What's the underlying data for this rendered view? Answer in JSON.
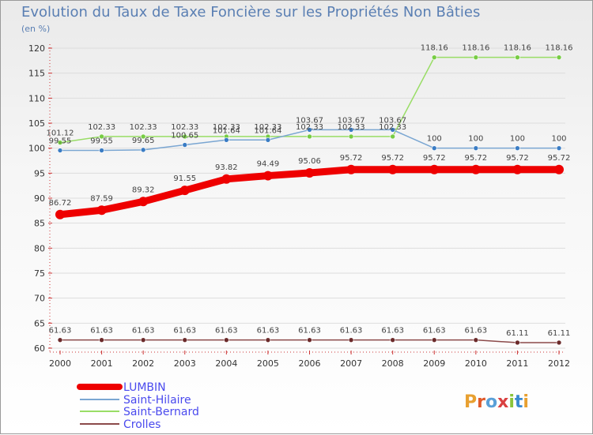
{
  "chart_data": {
    "type": "line",
    "title": "Evolution du Taux de Taxe Foncière sur les Propriétés Non Bâties",
    "ylabel": "(en %)",
    "xlabel": "",
    "categories": [
      "2000",
      "2001",
      "2002",
      "2003",
      "2004",
      "2005",
      "2006",
      "2007",
      "2008",
      "2009",
      "2010",
      "2011",
      "2012"
    ],
    "ylim": [
      60,
      120
    ],
    "yticks": [
      60,
      65,
      70,
      75,
      80,
      85,
      90,
      95,
      100,
      105,
      110,
      115,
      120
    ],
    "series": [
      {
        "name": "LUMBIN",
        "color": "#ee0000",
        "values": [
          86.72,
          87.59,
          89.32,
          91.55,
          93.82,
          94.49,
          95.06,
          95.72,
          95.72,
          95.72,
          95.72,
          95.72,
          95.72
        ],
        "labels": [
          "86.72",
          "87.59",
          "89.32",
          "91.55",
          "93.82",
          "94.49",
          "95.06",
          "95.72",
          "95.72",
          "95.72",
          "95.72",
          "95.72",
          "95.72"
        ]
      },
      {
        "name": "Saint-Hilaire",
        "color": "#7aa6d2",
        "marker": "#3a7cc4",
        "values": [
          99.55,
          99.55,
          99.65,
          100.65,
          101.64,
          101.64,
          103.67,
          103.67,
          103.67,
          100,
          100,
          100,
          100
        ],
        "labels": [
          "99.55",
          "99.55",
          "99.65",
          "100.65",
          "101.64",
          "101.64",
          "103.67",
          "103.67",
          "103.67",
          "100",
          "100",
          "100",
          "100"
        ]
      },
      {
        "name": "Saint-Bernard",
        "color": "#99dd66",
        "marker": "#77cc44",
        "values": [
          101.12,
          102.33,
          102.33,
          102.33,
          102.33,
          102.33,
          102.33,
          102.33,
          102.33,
          118.16,
          118.16,
          118.16,
          118.16
        ],
        "labels": [
          "101.12",
          "102.33",
          "102.33",
          "102.33",
          "102.33",
          "102.33",
          "102.33",
          "102.33",
          "102.33",
          "118.16",
          "118.16",
          "118.16",
          "118.16"
        ]
      },
      {
        "name": "Crolles",
        "color": "#8b4a4a",
        "marker": "#6b2a2a",
        "values": [
          61.63,
          61.63,
          61.63,
          61.63,
          61.63,
          61.63,
          61.63,
          61.63,
          61.63,
          61.63,
          61.63,
          61.11,
          61.11
        ],
        "labels": [
          "61.63",
          "61.63",
          "61.63",
          "61.63",
          "61.63",
          "61.63",
          "61.63",
          "61.63",
          "61.63",
          "61.63",
          "61.63",
          "61.11",
          "61.11"
        ]
      }
    ],
    "legend": [
      "LUMBIN",
      "Saint-Hilaire",
      "Saint-Bernard",
      "Crolles"
    ],
    "legend_position": "bottom-left"
  },
  "logo": {
    "text": "Proxiti"
  }
}
